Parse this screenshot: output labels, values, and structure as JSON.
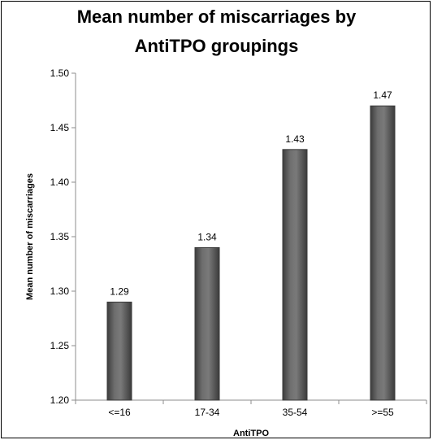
{
  "chart_data": {
    "type": "bar",
    "title_lines": [
      "Mean number of miscarriages by",
      "AntiTPO groupings"
    ],
    "xlabel": "AntiTPO",
    "ylabel": "Mean number of miscarriages",
    "categories": [
      "<=16",
      "17-34",
      "35-54",
      ">=55"
    ],
    "values": [
      1.29,
      1.34,
      1.43,
      1.47
    ],
    "data_labels": [
      "1.29",
      "1.34",
      "1.43",
      "1.47"
    ],
    "ylim": [
      1.2,
      1.5
    ],
    "yticks": [
      "1.20",
      "1.25",
      "1.30",
      "1.35",
      "1.40",
      "1.45",
      "1.50"
    ],
    "grid": false,
    "legend": "none",
    "bar_color": "#595959",
    "bar_edge_color": "#3a3a3a"
  }
}
